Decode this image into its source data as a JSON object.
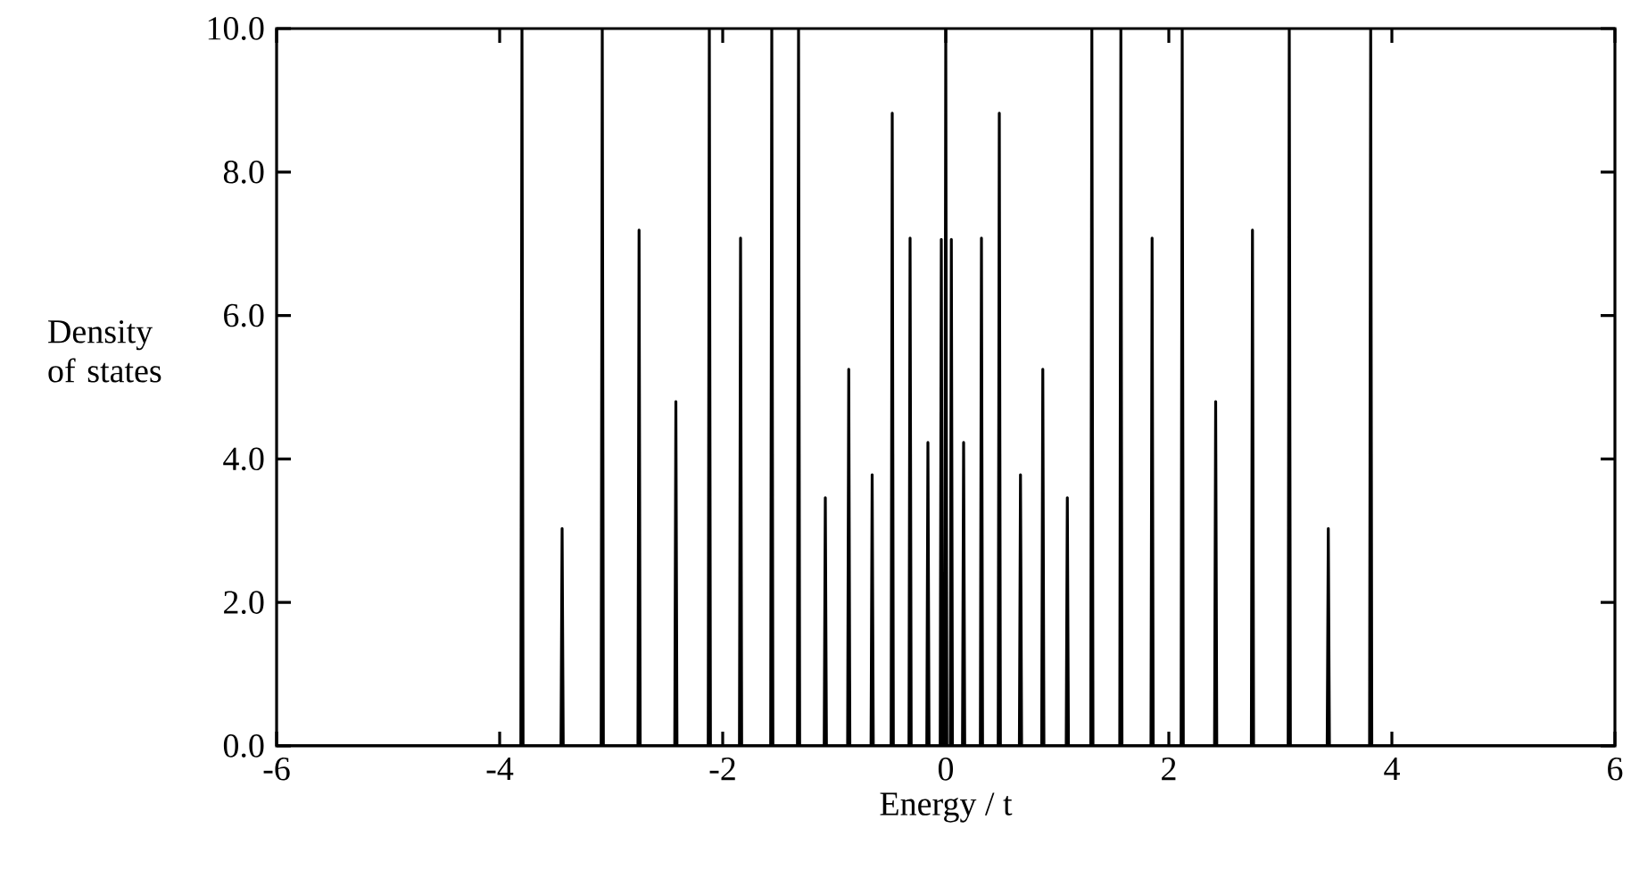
{
  "chart_data": {
    "type": "line",
    "xlabel": "Energy / t",
    "ylabel": "Density of states",
    "color": "#000000",
    "line_style": "solid",
    "xlim": [
      -6,
      6
    ],
    "ylim": [
      0,
      10
    ],
    "xticks": [
      -6,
      -4,
      -2,
      0,
      2,
      4,
      6
    ],
    "yticks": [
      {
        "value": 0,
        "label": "0.0"
      },
      {
        "value": 2,
        "label": "2.0"
      },
      {
        "value": 4,
        "label": "4.0"
      },
      {
        "value": 6,
        "label": "6.0"
      },
      {
        "value": 8,
        "label": "8.0"
      },
      {
        "value": 10,
        "label": "10.0"
      }
    ],
    "x": [
      -6,
      -3.81,
      -3.8,
      -3.79,
      -3.45,
      -3.44,
      -3.43,
      -3.09,
      -3.08,
      -3.07,
      -2.76,
      -2.75,
      -2.74,
      -2.43,
      -2.42,
      -2.41,
      -2.13,
      -2.12,
      -2.11,
      -1.85,
      -1.84,
      -1.83,
      -1.57,
      -1.56,
      -1.55,
      -1.33,
      -1.32,
      -1.31,
      -1.09,
      -1.08,
      -1.07,
      -0.88,
      -0.87,
      -0.86,
      -0.67,
      -0.66,
      -0.65,
      -0.49,
      -0.48,
      -0.47,
      -0.33,
      -0.32,
      -0.31,
      -0.17,
      -0.16,
      -0.15,
      -0.05,
      -0.04,
      -0.03,
      -0.01,
      0,
      0.01,
      0.04,
      0.05,
      0.06,
      0.15,
      0.16,
      0.17,
      0.31,
      0.32,
      0.33,
      0.47,
      0.48,
      0.49,
      0.66,
      0.67,
      0.68,
      0.86,
      0.87,
      0.88,
      1.08,
      1.09,
      1.1,
      1.3,
      1.31,
      1.32,
      1.56,
      1.57,
      1.58,
      1.84,
      1.85,
      1.86,
      2.11,
      2.12,
      2.13,
      2.41,
      2.42,
      2.43,
      2.74,
      2.75,
      2.76,
      3.07,
      3.08,
      3.09,
      3.42,
      3.43,
      3.44,
      3.8,
      3.81,
      3.82,
      6
    ],
    "values": [
      0,
      0,
      10,
      0,
      0,
      3.03,
      0,
      0,
      10,
      0,
      0,
      7.19,
      0,
      0,
      4.8,
      0,
      0,
      10,
      0,
      0,
      7.08,
      0,
      0,
      10,
      0,
      0,
      10,
      0,
      0,
      3.46,
      0,
      0,
      5.25,
      0,
      0,
      3.78,
      0,
      0,
      8.82,
      0,
      0,
      7.08,
      0,
      0,
      4.23,
      0,
      0,
      7.06,
      0,
      0,
      10,
      0,
      0,
      7.06,
      0,
      0,
      4.23,
      0,
      0,
      7.08,
      0,
      0,
      8.82,
      0,
      0,
      3.78,
      0,
      0,
      5.25,
      0,
      0,
      3.46,
      0,
      0,
      10,
      0,
      0,
      10,
      0,
      0,
      7.08,
      0,
      0,
      10,
      0,
      0,
      4.8,
      0,
      0,
      7.19,
      0,
      0,
      10,
      0,
      0,
      3.03,
      0,
      0,
      10,
      0,
      0
    ]
  }
}
